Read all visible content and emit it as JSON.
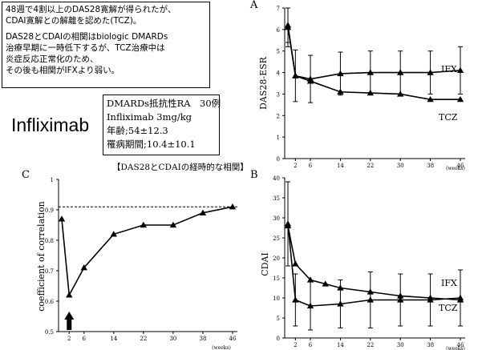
{
  "summary_note": {
    "line1": "48週で4割以上のDAS28寛解が得られたが、",
    "line2": "CDAI寛解との解離を認めた(TCZ)。",
    "line3": "DAS28とCDAIの相関はbiologic DMARDs",
    "line4": "治療早期に一時低下するが、TCZ治療中は",
    "line5": "炎症反応正常化のため、",
    "line6": "その後も相関がIFXより弱い。"
  },
  "drug_label": "Infliximab",
  "study_info": {
    "line1": "DMARDs抵抗性RA　30例",
    "line2": "Infliximab 3mg/kg",
    "line3": "年齢;54±12.3",
    "line4": "罹病期間;10.4±10.1"
  },
  "chart_data": [
    {
      "panel": "A",
      "type": "line",
      "ylabel": "DAS28-ESR",
      "xlabel": "(weeks)",
      "x_ticks": [
        2,
        6,
        14,
        22,
        30,
        38,
        46
      ],
      "ylim": [
        0,
        7
      ],
      "y_ticks": [
        0,
        1,
        2,
        3,
        4,
        5,
        6,
        7
      ],
      "grid": false,
      "series": [
        {
          "name": "IFX",
          "marker": "triangle",
          "x": [
            0,
            2,
            6,
            14,
            22,
            30,
            38,
            46
          ],
          "values": [
            6.2,
            3.85,
            3.7,
            3.95,
            4.0,
            4.0,
            4.0,
            4.1
          ],
          "err": [
            0.8,
            1.2,
            1.1,
            1.0,
            1.0,
            1.0,
            1.0,
            1.1
          ]
        },
        {
          "name": "TCZ",
          "marker": "triangle",
          "x": [
            0,
            2,
            6,
            14,
            22,
            30,
            38,
            46
          ],
          "values": [
            6.1,
            3.85,
            3.6,
            3.1,
            3.05,
            3.0,
            2.75,
            2.75
          ],
          "err": [
            0.9,
            0,
            0,
            0,
            0,
            0,
            0,
            0
          ]
        }
      ]
    },
    {
      "panel": "B",
      "type": "line",
      "ylabel": "CDAI",
      "xlabel": "(weeks)",
      "x_ticks": [
        2,
        6,
        14,
        22,
        30,
        38,
        46
      ],
      "ylim": [
        0,
        40
      ],
      "y_ticks": [
        0,
        5,
        10,
        15,
        20,
        25,
        30,
        35,
        40
      ],
      "grid": false,
      "series": [
        {
          "name": "IFX",
          "marker": "triangle",
          "x": [
            0,
            2,
            6,
            10,
            14,
            22,
            30,
            38,
            46
          ],
          "values": [
            28.5,
            9.5,
            8.0,
            0,
            8.5,
            9.5,
            9.5,
            9.5,
            10.0
          ],
          "err": [
            10.5,
            6.5,
            6.0,
            0,
            6.0,
            7.0,
            6.5,
            6.5,
            7.0
          ]
        },
        {
          "name": "TCZ",
          "marker": "triangle",
          "x": [
            0,
            2,
            6,
            10,
            14,
            22,
            30,
            38,
            46
          ],
          "values": [
            28.0,
            18.5,
            14.5,
            13.5,
            12.5,
            11.5,
            10.5,
            10.0,
            9.5
          ],
          "err": [
            0,
            0,
            0,
            0,
            0,
            0,
            0,
            0,
            0
          ]
        }
      ]
    },
    {
      "panel": "C",
      "type": "line",
      "title": "【DAS28とCDAIの経時的な相関】",
      "ylabel": "coefficient of correlation",
      "xlabel": "(weeks)",
      "x_ticks": [
        2,
        6,
        14,
        22,
        30,
        38,
        46
      ],
      "ylim": [
        0.5,
        1.0
      ],
      "y_ticks": [
        0.5,
        0.6,
        0.7,
        0.8,
        0.9,
        1.0
      ],
      "reference_line": 0.91,
      "arrow_at_week": 2,
      "grid": false,
      "series": [
        {
          "name": "",
          "marker": "triangle",
          "x": [
            0,
            2,
            6,
            14,
            22,
            30,
            38,
            46
          ],
          "values": [
            0.87,
            0.62,
            0.71,
            0.82,
            0.85,
            0.85,
            0.89,
            0.91
          ]
        }
      ]
    }
  ]
}
